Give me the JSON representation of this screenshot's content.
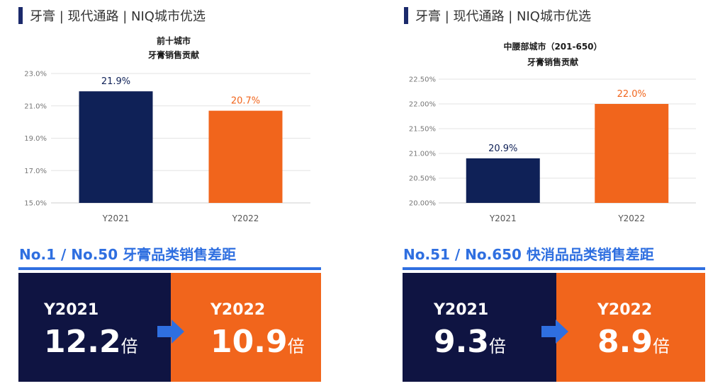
{
  "left": {
    "header": "牙膏 | 现代通路 | NIQ城市优选",
    "gap_title": "No.1 / No.50 牙膏品类销售差距",
    "gap": [
      {
        "year": "Y2021",
        "value": "12.2",
        "unit": "倍"
      },
      {
        "year": "Y2022",
        "value": "10.9",
        "unit": "倍"
      }
    ]
  },
  "right": {
    "header": "牙膏 | 现代通路 | NIQ城市优选",
    "gap_title": "No.51 / No.650 快消品品类销售差距",
    "gap": [
      {
        "year": "Y2021",
        "value": "9.3",
        "unit": "倍"
      },
      {
        "year": "Y2022",
        "value": "8.9",
        "unit": "倍"
      }
    ]
  },
  "colors": {
    "navy": "#0f2157",
    "orange": "#f1651c",
    "accent": "#2f6fe0",
    "grid": "#e3e3e3",
    "dark_box": "#0f1442"
  },
  "icons": [
    "arrow-right-icon"
  ],
  "chart_data": [
    {
      "type": "bar",
      "title": [
        "前十城市",
        "牙膏销售贡献"
      ],
      "categories": [
        "Y2021",
        "Y2022"
      ],
      "values": [
        21.9,
        20.7
      ],
      "data_labels": [
        "21.9%",
        "20.7%"
      ],
      "bar_colors": [
        "#0f2157",
        "#f1651c"
      ],
      "label_colors": [
        "#0f2157",
        "#f1651c"
      ],
      "ylim": [
        15.0,
        23.0
      ],
      "yticks": [
        15.0,
        17.0,
        19.0,
        21.0,
        23.0
      ],
      "ytick_labels": [
        "15.0%",
        "17.0%",
        "19.0%",
        "21.0%",
        "23.0%"
      ],
      "grid": true,
      "legend": "none"
    },
    {
      "type": "bar",
      "title": [
        "中腰部城市（201-650）",
        "牙膏销售贡献"
      ],
      "categories": [
        "Y2021",
        "Y2022"
      ],
      "values": [
        20.9,
        22.0
      ],
      "data_labels": [
        "20.9%",
        "22.0%"
      ],
      "bar_colors": [
        "#0f2157",
        "#f1651c"
      ],
      "label_colors": [
        "#0f2157",
        "#f1651c"
      ],
      "ylim": [
        20.0,
        22.5
      ],
      "yticks": [
        20.0,
        20.5,
        21.0,
        21.5,
        22.0,
        22.5
      ],
      "ytick_labels": [
        "20.00%",
        "20.50%",
        "21.00%",
        "21.50%",
        "22.00%",
        "22.50%"
      ],
      "grid": true,
      "legend": "none"
    }
  ]
}
